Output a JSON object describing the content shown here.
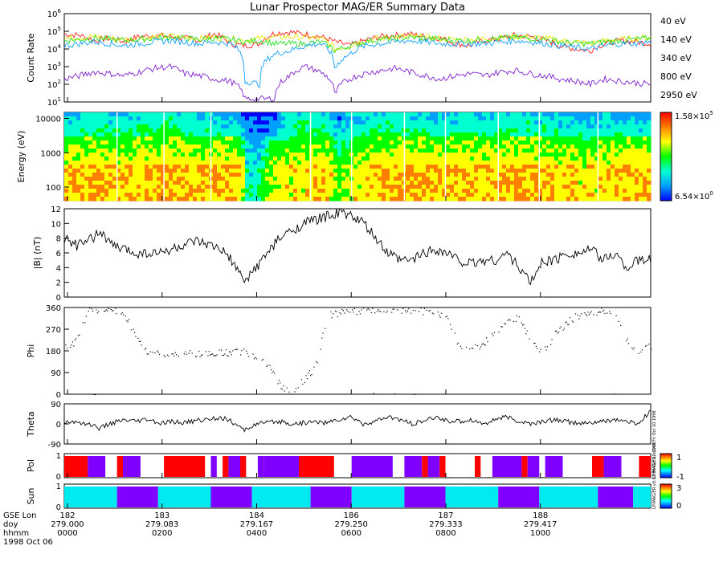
{
  "title": "Lunar Prospector MAG/ER Summary Data",
  "colors": {
    "ch40": "#ff2020",
    "ch140": "#e8e800",
    "ch340": "#20e020",
    "ch800": "#10a0ff",
    "ch2950": "#8020d0",
    "pol_pos": "#ff0000",
    "pol_neg": "#8000ff",
    "sun_lit": "#00eaf0",
    "sun_shadow": "#8000ff",
    "cbar_stops": [
      "#0000ff",
      "#00a0ff",
      "#00ffd0",
      "#00ff00",
      "#ffff00",
      "#ff8000",
      "#ff0000"
    ]
  },
  "chart_data": [
    {
      "type": "line",
      "panel": "count_rate",
      "ylabel": "Count Rate",
      "yscale": "log",
      "ylim": [
        10,
        1000000
      ],
      "yticks": [
        "10",
        "10",
        "10",
        "10",
        "10",
        "10"
      ],
      "yexp": [
        "1",
        "2",
        "3",
        "4",
        "5",
        "6"
      ],
      "series": [
        {
          "name": "40 eV",
          "color_key": "ch40",
          "values": [
            70000,
            60000,
            30000,
            40000,
            25000,
            50000,
            60000,
            50000,
            40000,
            30000,
            70000,
            20000,
            15000,
            20000,
            80000,
            90000,
            70000,
            50000,
            25000,
            15000,
            30000,
            50000,
            60000,
            70000,
            50000,
            40000,
            20000,
            15000,
            30000,
            40000,
            60000,
            50000,
            30000,
            15000,
            10000,
            8000,
            20000,
            30000,
            25000,
            20000
          ]
        },
        {
          "name": "140 eV",
          "color_key": "ch140",
          "values": [
            40000,
            45000,
            50000,
            40000,
            35000,
            40000,
            50000,
            55000,
            45000,
            40000,
            45000,
            40000,
            30000,
            40000,
            45000,
            50000,
            45000,
            40000,
            10000,
            15000,
            30000,
            40000,
            45000,
            50000,
            45000,
            40000,
            35000,
            35000,
            40000,
            45000,
            50000,
            45000,
            40000,
            30000,
            25000,
            20000,
            30000,
            35000,
            40000,
            45000
          ]
        },
        {
          "name": "340 eV",
          "color_key": "ch340",
          "values": [
            30000,
            35000,
            40000,
            35000,
            30000,
            35000,
            40000,
            45000,
            40000,
            35000,
            40000,
            35000,
            25000,
            30000,
            20000,
            20000,
            20000,
            25000,
            8000,
            15000,
            25000,
            35000,
            40000,
            45000,
            40000,
            35000,
            30000,
            30000,
            35000,
            40000,
            45000,
            40000,
            35000,
            25000,
            20000,
            20000,
            25000,
            30000,
            35000,
            40000
          ]
        },
        {
          "name": "800 eV",
          "color_key": "ch800",
          "values": [
            15000,
            20000,
            25000,
            20000,
            15000,
            20000,
            25000,
            30000,
            25000,
            20000,
            25000,
            20000,
            150,
            100,
            5000,
            8000,
            15000,
            20000,
            600,
            5000,
            15000,
            20000,
            25000,
            30000,
            25000,
            20000,
            20000,
            20000,
            20000,
            25000,
            30000,
            25000,
            20000,
            15000,
            12000,
            10000,
            15000,
            20000,
            20000,
            25000
          ]
        },
        {
          "name": "2950 eV",
          "color_key": "ch2950",
          "values": [
            200,
            300,
            500,
            400,
            300,
            500,
            800,
            1000,
            400,
            300,
            200,
            150,
            15,
            15,
            15,
            300,
            1000,
            500,
            20,
            200,
            400,
            600,
            800,
            500,
            300,
            200,
            300,
            400,
            300,
            500,
            600,
            400,
            300,
            200,
            150,
            100,
            200,
            150,
            120,
            100
          ]
        }
      ]
    },
    {
      "type": "heatmap",
      "panel": "spectrogram",
      "ylabel": "Energy (eV)",
      "yscale": "log",
      "ylim": [
        40,
        15000
      ],
      "yticks": [
        "10000",
        "1000",
        "100"
      ],
      "colorbar": {
        "max": "1.58×10",
        "max_exp": "5",
        "min": "6.54×10",
        "min_exp": "0"
      }
    },
    {
      "type": "line",
      "panel": "field_magnitude",
      "ylabel": "|B| (nT)",
      "ylim": [
        0,
        12
      ],
      "yticks": [
        "0",
        "2",
        "4",
        "6",
        "8",
        "10",
        "12"
      ],
      "values": [
        8,
        7,
        7.5,
        9,
        7,
        6.5,
        6,
        6,
        6,
        6.5,
        7,
        7.5,
        7,
        6.5,
        5,
        2,
        4,
        6,
        8,
        9,
        10,
        10.5,
        11,
        11.5,
        11,
        10,
        8,
        6,
        5,
        5,
        6,
        6.5,
        6,
        5,
        4.5,
        5,
        5,
        6,
        4,
        2,
        5,
        5,
        6,
        6,
        6.5,
        5,
        6,
        4,
        5,
        5
      ]
    },
    {
      "type": "scatter",
      "panel": "phi",
      "ylabel": "Phi",
      "ylim": [
        0,
        360
      ],
      "yticks": [
        "0",
        "90",
        "180",
        "270",
        "360"
      ],
      "values": [
        200,
        220,
        350,
        355,
        350,
        340,
        230,
        175,
        170,
        165,
        170,
        168,
        172,
        175,
        170,
        180,
        160,
        120,
        40,
        10,
        60,
        120,
        330,
        340,
        350,
        345,
        355,
        355,
        350,
        352,
        345,
        340,
        320,
        200,
        190,
        210,
        260,
        300,
        320,
        210,
        180,
        250,
        300,
        330,
        340,
        345,
        350,
        220,
        180,
        200
      ]
    },
    {
      "type": "line",
      "panel": "theta",
      "ylabel": "Theta",
      "ylim": [
        -90,
        90
      ],
      "yticks": [
        "-90",
        "0",
        "90"
      ],
      "values": [
        5,
        10,
        0,
        -20,
        5,
        15,
        10,
        20,
        0,
        10,
        5,
        15,
        20,
        30,
        10,
        -30,
        0,
        5,
        10,
        0,
        5,
        10,
        5,
        20,
        30,
        0,
        10,
        30,
        20,
        0,
        10,
        30,
        15,
        10,
        20,
        0,
        20,
        30,
        10,
        0,
        10,
        20,
        10,
        0,
        5,
        10,
        20,
        10,
        0,
        60
      ]
    },
    {
      "type": "heatmap",
      "panel": "polarity",
      "ylabel": "Pol",
      "ylim": [
        0,
        1
      ],
      "yticks": [
        "0",
        "1"
      ],
      "colorbar": {
        "min": "-1",
        "max": "1"
      },
      "side_note": "LP/MAG/ER, v0.03  Fri Oct 10 1998"
    },
    {
      "type": "heatmap",
      "panel": "sun",
      "ylabel": "Sun",
      "ylim": [
        0,
        1
      ],
      "yticks": [
        "0",
        "1"
      ],
      "colorbar": {
        "min": "0",
        "max": "3"
      },
      "side_note": "LP/MAG/ER v0.02  Fri Oct 10 1998"
    }
  ],
  "xaxis": {
    "rows": [
      "GSE Lon",
      "doy",
      "hhmm",
      "1998 Oct 06"
    ],
    "ticks": [
      {
        "lon": "182",
        "doy": "279.000",
        "hhmm": "0000"
      },
      {
        "lon": "183",
        "doy": "279.083",
        "hhmm": "0200"
      },
      {
        "lon": "184",
        "doy": "279.167",
        "hhmm": "0400"
      },
      {
        "lon": "186",
        "doy": "279.250",
        "hhmm": "0600"
      },
      {
        "lon": "187",
        "doy": "279.333",
        "hhmm": "0800"
      },
      {
        "lon": "188",
        "doy": "279.417",
        "hhmm": "1000"
      }
    ]
  },
  "pol_segments": [
    {
      "from": 0.0,
      "to": 0.04,
      "v": "pos"
    },
    {
      "from": 0.04,
      "to": 0.07,
      "v": "neg"
    },
    {
      "from": 0.09,
      "to": 0.1,
      "v": "pos"
    },
    {
      "from": 0.1,
      "to": 0.13,
      "v": "neg"
    },
    {
      "from": 0.17,
      "to": 0.24,
      "v": "pos"
    },
    {
      "from": 0.25,
      "to": 0.26,
      "v": "neg"
    },
    {
      "from": 0.27,
      "to": 0.28,
      "v": "pos"
    },
    {
      "from": 0.28,
      "to": 0.3,
      "v": "neg"
    },
    {
      "from": 0.3,
      "to": 0.31,
      "v": "pos"
    },
    {
      "from": 0.33,
      "to": 0.34,
      "v": "neg"
    },
    {
      "from": 0.34,
      "to": 0.4,
      "v": "neg"
    },
    {
      "from": 0.4,
      "to": 0.46,
      "v": "pos"
    },
    {
      "from": 0.49,
      "to": 0.56,
      "v": "neg"
    },
    {
      "from": 0.58,
      "to": 0.61,
      "v": "neg"
    },
    {
      "from": 0.61,
      "to": 0.62,
      "v": "pos"
    },
    {
      "from": 0.62,
      "to": 0.64,
      "v": "neg"
    },
    {
      "from": 0.64,
      "to": 0.65,
      "v": "pos"
    },
    {
      "from": 0.7,
      "to": 0.71,
      "v": "pos"
    },
    {
      "from": 0.73,
      "to": 0.78,
      "v": "neg"
    },
    {
      "from": 0.78,
      "to": 0.79,
      "v": "pos"
    },
    {
      "from": 0.79,
      "to": 0.81,
      "v": "neg"
    },
    {
      "from": 0.82,
      "to": 0.85,
      "v": "neg"
    },
    {
      "from": 0.9,
      "to": 0.92,
      "v": "pos"
    },
    {
      "from": 0.92,
      "to": 0.95,
      "v": "neg"
    },
    {
      "from": 0.98,
      "to": 1.0,
      "v": "pos"
    }
  ],
  "sun_segments": [
    {
      "from": 0.0,
      "to": 0.09,
      "v": "lit"
    },
    {
      "from": 0.09,
      "to": 0.16,
      "v": "shadow"
    },
    {
      "from": 0.16,
      "to": 0.25,
      "v": "lit"
    },
    {
      "from": 0.25,
      "to": 0.32,
      "v": "shadow"
    },
    {
      "from": 0.32,
      "to": 0.42,
      "v": "lit"
    },
    {
      "from": 0.42,
      "to": 0.49,
      "v": "shadow"
    },
    {
      "from": 0.49,
      "to": 0.58,
      "v": "lit"
    },
    {
      "from": 0.58,
      "to": 0.65,
      "v": "shadow"
    },
    {
      "from": 0.65,
      "to": 0.74,
      "v": "lit"
    },
    {
      "from": 0.74,
      "to": 0.81,
      "v": "shadow"
    },
    {
      "from": 0.81,
      "to": 0.91,
      "v": "lit"
    },
    {
      "from": 0.91,
      "to": 0.97,
      "v": "shadow"
    },
    {
      "from": 0.97,
      "to": 1.0,
      "v": "lit"
    }
  ]
}
